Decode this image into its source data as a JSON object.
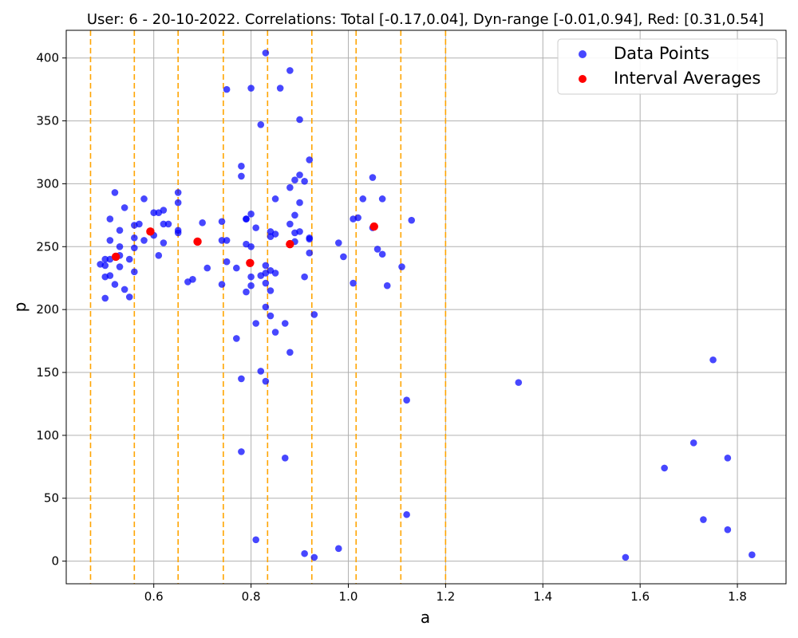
{
  "chart_data": {
    "type": "scatter",
    "title": "User: 6 - 20-10-2022. Correlations: Total [-0.17,0.04], Dyn-range [-0.01,0.94], Red: [0.31,0.54]",
    "xlabel": "a",
    "ylabel": "p",
    "xlim": [
      0.42,
      1.9
    ],
    "ylim": [
      -18,
      422
    ],
    "xticks": [
      0.6,
      0.8,
      1.0,
      1.2,
      1.4,
      1.6,
      1.8
    ],
    "xtick_labels": [
      "0.6",
      "0.8",
      "1.0",
      "1.2",
      "1.4",
      "1.6",
      "1.8"
    ],
    "yticks": [
      0,
      50,
      100,
      150,
      200,
      250,
      300,
      350,
      400
    ],
    "ytick_labels": [
      "0",
      "50",
      "100",
      "150",
      "200",
      "250",
      "300",
      "350",
      "400"
    ],
    "grid": true,
    "legend_position": "top-right",
    "interval_boundaries": [
      0.47,
      0.56,
      0.65,
      0.743,
      0.834,
      0.925,
      1.016,
      1.108,
      1.2
    ],
    "series": [
      {
        "name": "Data Points",
        "color": "#0000ff",
        "points": [
          [
            0.49,
            236
          ],
          [
            0.5,
            240
          ],
          [
            0.5,
            235
          ],
          [
            0.5,
            226
          ],
          [
            0.5,
            209
          ],
          [
            0.51,
            240
          ],
          [
            0.51,
            227
          ],
          [
            0.51,
            255
          ],
          [
            0.51,
            272
          ],
          [
            0.52,
            293
          ],
          [
            0.52,
            220
          ],
          [
            0.53,
            263
          ],
          [
            0.53,
            250
          ],
          [
            0.53,
            243
          ],
          [
            0.53,
            234
          ],
          [
            0.54,
            281
          ],
          [
            0.54,
            216
          ],
          [
            0.55,
            240
          ],
          [
            0.55,
            210
          ],
          [
            0.56,
            267
          ],
          [
            0.56,
            257
          ],
          [
            0.56,
            249
          ],
          [
            0.56,
            230
          ],
          [
            0.57,
            268
          ],
          [
            0.58,
            288
          ],
          [
            0.58,
            255
          ],
          [
            0.6,
            277
          ],
          [
            0.6,
            259
          ],
          [
            0.61,
            277
          ],
          [
            0.61,
            243
          ],
          [
            0.62,
            279
          ],
          [
            0.62,
            268
          ],
          [
            0.62,
            253
          ],
          [
            0.63,
            268
          ],
          [
            0.65,
            293
          ],
          [
            0.65,
            285
          ],
          [
            0.65,
            263
          ],
          [
            0.65,
            261
          ],
          [
            0.67,
            222
          ],
          [
            0.68,
            224
          ],
          [
            0.7,
            269
          ],
          [
            0.71,
            233
          ],
          [
            0.74,
            270
          ],
          [
            0.74,
            255
          ],
          [
            0.74,
            220
          ],
          [
            0.75,
            375
          ],
          [
            0.75,
            255
          ],
          [
            0.75,
            238
          ],
          [
            0.77,
            233
          ],
          [
            0.77,
            177
          ],
          [
            0.78,
            314
          ],
          [
            0.78,
            306
          ],
          [
            0.78,
            145
          ],
          [
            0.78,
            87
          ],
          [
            0.79,
            272
          ],
          [
            0.79,
            272
          ],
          [
            0.79,
            252
          ],
          [
            0.79,
            214
          ],
          [
            0.8,
            376
          ],
          [
            0.8,
            276
          ],
          [
            0.8,
            250
          ],
          [
            0.8,
            226
          ],
          [
            0.8,
            219
          ],
          [
            0.81,
            265
          ],
          [
            0.81,
            189
          ],
          [
            0.81,
            17
          ],
          [
            0.82,
            347
          ],
          [
            0.82,
            227
          ],
          [
            0.82,
            151
          ],
          [
            0.83,
            404
          ],
          [
            0.83,
            235
          ],
          [
            0.83,
            229
          ],
          [
            0.83,
            221
          ],
          [
            0.83,
            202
          ],
          [
            0.83,
            143
          ],
          [
            0.84,
            262
          ],
          [
            0.84,
            258
          ],
          [
            0.84,
            231
          ],
          [
            0.84,
            215
          ],
          [
            0.84,
            195
          ],
          [
            0.85,
            288
          ],
          [
            0.85,
            260
          ],
          [
            0.85,
            229
          ],
          [
            0.85,
            182
          ],
          [
            0.86,
            376
          ],
          [
            0.87,
            189
          ],
          [
            0.87,
            82
          ],
          [
            0.88,
            390
          ],
          [
            0.88,
            297
          ],
          [
            0.88,
            268
          ],
          [
            0.88,
            166
          ],
          [
            0.89,
            303
          ],
          [
            0.89,
            275
          ],
          [
            0.89,
            261
          ],
          [
            0.89,
            254
          ],
          [
            0.9,
            351
          ],
          [
            0.9,
            307
          ],
          [
            0.9,
            285
          ],
          [
            0.9,
            262
          ],
          [
            0.91,
            302
          ],
          [
            0.91,
            226
          ],
          [
            0.91,
            6
          ],
          [
            0.92,
            319
          ],
          [
            0.92,
            257
          ],
          [
            0.92,
            256
          ],
          [
            0.92,
            245
          ],
          [
            0.93,
            196
          ],
          [
            0.93,
            3
          ],
          [
            0.98,
            253
          ],
          [
            0.98,
            10
          ],
          [
            0.99,
            242
          ],
          [
            1.01,
            272
          ],
          [
            1.01,
            221
          ],
          [
            1.02,
            273
          ],
          [
            1.03,
            288
          ],
          [
            1.05,
            305
          ],
          [
            1.05,
            265
          ],
          [
            1.06,
            248
          ],
          [
            1.07,
            288
          ],
          [
            1.07,
            244
          ],
          [
            1.08,
            219
          ],
          [
            1.11,
            234
          ],
          [
            1.12,
            128
          ],
          [
            1.12,
            37
          ],
          [
            1.13,
            271
          ],
          [
            1.35,
            142
          ],
          [
            1.57,
            3
          ],
          [
            1.65,
            74
          ],
          [
            1.71,
            94
          ],
          [
            1.73,
            33
          ],
          [
            1.75,
            160
          ],
          [
            1.78,
            82
          ],
          [
            1.78,
            25
          ],
          [
            1.83,
            5
          ]
        ]
      },
      {
        "name": "Interval Averages",
        "color": "#ff0000",
        "points": [
          [
            0.522,
            242
          ],
          [
            0.593,
            262
          ],
          [
            0.69,
            254
          ],
          [
            0.798,
            237
          ],
          [
            0.88,
            252
          ],
          [
            1.053,
            266
          ]
        ]
      }
    ],
    "colors": {
      "grid": "#b0b0b0",
      "boundary": "#ffa500",
      "axes": "#000000"
    }
  }
}
